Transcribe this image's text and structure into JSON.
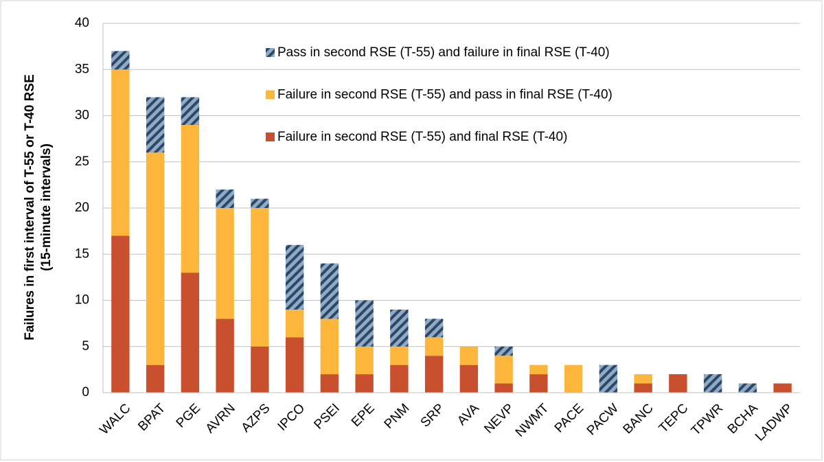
{
  "chart_data": {
    "type": "stacked_bar",
    "ylabel": [
      "Failures in first interval of T-55 or T-40 RSE",
      "(15-minute intervals)"
    ],
    "categories": [
      "WALC",
      "BPAT",
      "PGE",
      "AVRN",
      "AZPS",
      "IPCO",
      "PSEI",
      "EPE",
      "PNM",
      "SRP",
      "AVA",
      "NEVP",
      "NWMT",
      "PACE",
      "PACW",
      "BANC",
      "TEPC",
      "TPWR",
      "BCHA",
      "LADWP"
    ],
    "series": [
      {
        "name": "Failure in second RSE (T-55) and final RSE (T-40)",
        "color": "#c9502e",
        "values": [
          17,
          3,
          13,
          8,
          5,
          6,
          2,
          2,
          3,
          4,
          3,
          1,
          2,
          0,
          0,
          1,
          2,
          0,
          0,
          1
        ]
      },
      {
        "name": "Failure in second RSE (T-55) and pass in final RSE (T-40)",
        "color": "#fbb63b",
        "values": [
          18,
          23,
          16,
          12,
          15,
          3,
          6,
          3,
          2,
          2,
          2,
          3,
          1,
          3,
          0,
          1,
          0,
          0,
          0,
          0
        ]
      },
      {
        "name": "Pass in second RSE (T-55) and failure in final RSE (T-40)",
        "color": "#8eaac4",
        "pattern": "diagonal",
        "values": [
          2,
          6,
          3,
          2,
          1,
          7,
          6,
          5,
          4,
          2,
          0,
          1,
          0,
          0,
          3,
          0,
          0,
          2,
          1,
          0
        ]
      }
    ],
    "ylim": [
      0,
      40
    ],
    "yticks": [
      0,
      5,
      10,
      15,
      20,
      25,
      30,
      35,
      40
    ],
    "grid": true
  }
}
